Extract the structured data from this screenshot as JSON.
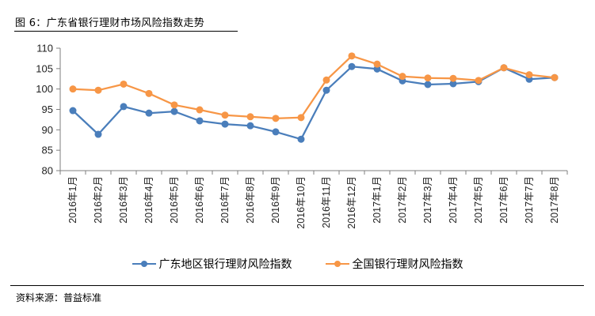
{
  "figure": {
    "title": "图 6：广东省银行理财市场风险指数走势",
    "source": "资料来源：普益标准"
  },
  "colors": {
    "series_guangdong": "#4A7EBB",
    "series_national": "#F79646",
    "axis": "#7F7F7F"
  },
  "chart_data": {
    "type": "line",
    "title": "广东省银行理财市场风险指数走势",
    "xlabel": "",
    "ylabel": "",
    "ylim": [
      80,
      110
    ],
    "yticks": [
      80,
      85,
      90,
      95,
      100,
      105,
      110
    ],
    "grid": false,
    "legend_position": "bottom",
    "categories": [
      "2016年1月",
      "2016年2月",
      "2016年3月",
      "2016年4月",
      "2016年5月",
      "2016年6月",
      "2016年7月",
      "2016年8月",
      "2016年9月",
      "2016年10月",
      "2016年11月",
      "2016年12月",
      "2017年1月",
      "2017年2月",
      "2017年3月",
      "2017年4月",
      "2017年5月",
      "2017年6月",
      "2017年7月",
      "2017年8月"
    ],
    "series": [
      {
        "name": "广东地区银行理财风险指数",
        "color": "#4A7EBB",
        "values": [
          94.7,
          88.9,
          95.7,
          94.1,
          94.5,
          92.2,
          91.4,
          91.0,
          89.5,
          87.7,
          99.7,
          105.5,
          104.9,
          102.0,
          101.1,
          101.3,
          101.8,
          105.2,
          102.4,
          102.8
        ]
      },
      {
        "name": "全国银行理财风险指数",
        "color": "#F79646",
        "values": [
          100.0,
          99.7,
          101.2,
          98.9,
          96.1,
          94.9,
          93.6,
          93.2,
          92.8,
          93.0,
          102.2,
          108.1,
          106.1,
          103.1,
          102.7,
          102.6,
          102.1,
          105.2,
          103.5,
          102.8
        ]
      }
    ]
  }
}
